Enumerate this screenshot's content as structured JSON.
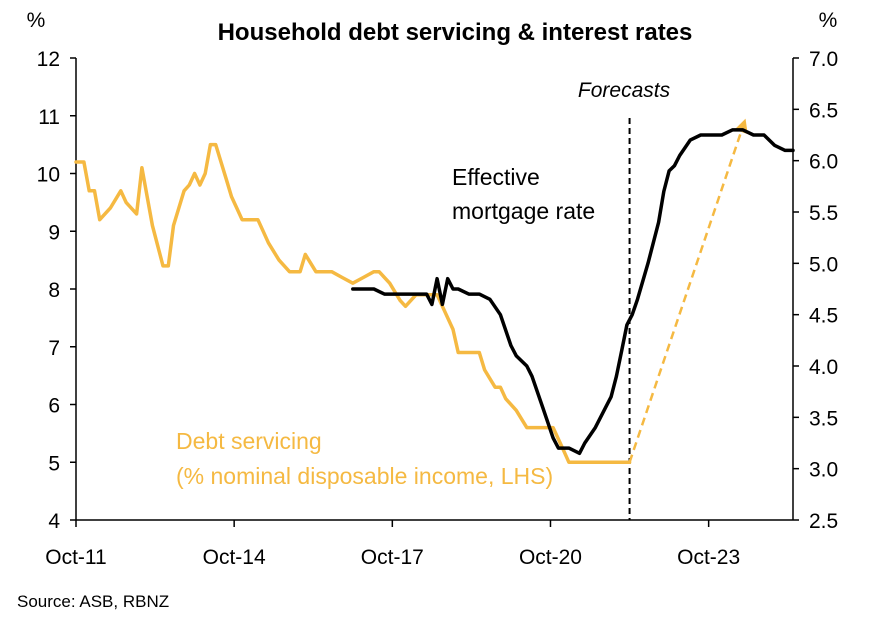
{
  "chart_data": {
    "type": "line",
    "title": "Household debt servicing & interest rates",
    "left_axis": {
      "unit": "%",
      "ylim": [
        4,
        12
      ],
      "ticks": [
        4,
        5,
        6,
        7,
        8,
        9,
        10,
        11,
        12
      ],
      "tick_labels": [
        "4",
        "5",
        "6",
        "7",
        "8",
        "9",
        "10",
        "11",
        "12"
      ]
    },
    "right_axis": {
      "unit": "%",
      "ylim": [
        2.5,
        7.0
      ],
      "ticks": [
        2.5,
        3.0,
        3.5,
        4.0,
        4.5,
        5.0,
        5.5,
        6.0,
        6.5,
        7.0
      ],
      "tick_labels": [
        "2.5",
        "3.0",
        "3.5",
        "4.0",
        "4.5",
        "5.0",
        "5.5",
        "6.0",
        "6.5",
        "7.0"
      ]
    },
    "x_axis": {
      "tick_labels": [
        "Oct-11",
        "Oct-14",
        "Oct-17",
        "Oct-20",
        "Oct-23"
      ],
      "tick_positions": [
        2011.75,
        2014.75,
        2017.75,
        2020.75,
        2023.75
      ],
      "xlim": [
        2011.75,
        2025.35
      ]
    },
    "forecast_label": "Forecasts",
    "forecast_start": 2022.25,
    "source": "Source: ASB, RBNZ",
    "series": [
      {
        "name": "Debt servicing",
        "label_lines": [
          "Debt servicing",
          "(% nominal disposable income, LHS)"
        ],
        "axis": "left",
        "color": "#F5B942",
        "x": [
          2011.75,
          2011.9,
          2012.0,
          2012.1,
          2012.2,
          2012.4,
          2012.6,
          2012.7,
          2012.9,
          2013.0,
          2013.2,
          2013.4,
          2013.5,
          2013.6,
          2013.8,
          2013.9,
          2014.0,
          2014.1,
          2014.2,
          2014.3,
          2014.4,
          2014.5,
          2014.6,
          2014.7,
          2014.8,
          2014.9,
          2015.0,
          2015.1,
          2015.2,
          2015.3,
          2015.4,
          2015.6,
          2015.8,
          2016.0,
          2016.1,
          2016.3,
          2016.4,
          2016.6,
          2016.8,
          2017.0,
          2017.2,
          2017.4,
          2017.5,
          2017.7,
          2017.9,
          2018.0,
          2018.2,
          2018.3,
          2018.5,
          2018.6,
          2018.7,
          2018.9,
          2019.0,
          2019.2,
          2019.4,
          2019.5,
          2019.7,
          2019.8,
          2019.9,
          2020.1,
          2020.3,
          2020.4,
          2020.6,
          2020.8,
          2020.9,
          2021.0,
          2021.1,
          2021.3,
          2021.5,
          2021.6,
          2021.8,
          2021.9,
          2022.0,
          2022.25
        ],
        "values": [
          10.2,
          10.2,
          9.7,
          9.7,
          9.2,
          9.4,
          9.7,
          9.5,
          9.3,
          10.1,
          9.1,
          8.4,
          8.4,
          9.1,
          9.7,
          9.8,
          10.0,
          9.8,
          10.0,
          10.5,
          10.5,
          10.2,
          9.9,
          9.6,
          9.4,
          9.2,
          9.2,
          9.2,
          9.2,
          9.0,
          8.8,
          8.5,
          8.3,
          8.3,
          8.6,
          8.3,
          8.3,
          8.3,
          8.2,
          8.1,
          8.2,
          8.3,
          8.3,
          8.1,
          7.8,
          7.7,
          7.9,
          7.9,
          7.9,
          7.9,
          7.7,
          7.3,
          6.9,
          6.9,
          6.9,
          6.6,
          6.3,
          6.3,
          6.1,
          5.9,
          5.6,
          5.6,
          5.6,
          5.6,
          5.4,
          5.2,
          5.0,
          5.0,
          5.0,
          5.0,
          5.0,
          5.0,
          5.0,
          5.0
        ]
      },
      {
        "name": "Effective mortgage rate",
        "label_lines": [
          "Effective",
          "mortgage rate"
        ],
        "axis": "right",
        "color": "#000000",
        "x": [
          2017.0,
          2017.2,
          2017.4,
          2017.6,
          2017.8,
          2018.0,
          2018.2,
          2018.4,
          2018.5,
          2018.6,
          2018.7,
          2018.8,
          2018.9,
          2019.0,
          2019.2,
          2019.4,
          2019.6,
          2019.8,
          2020.0,
          2020.1,
          2020.3,
          2020.4,
          2020.6,
          2020.8,
          2020.9,
          2021.0,
          2021.1,
          2021.3,
          2021.4,
          2021.6,
          2021.8,
          2021.9,
          2022.0,
          2022.1,
          2022.2,
          2022.3,
          2022.4,
          2022.6,
          2022.8,
          2022.9,
          2023.0,
          2023.1,
          2023.2,
          2023.4,
          2023.6,
          2023.8,
          2024.0,
          2024.2,
          2024.4,
          2024.6,
          2024.8,
          2025.0,
          2025.2,
          2025.35
        ],
        "values": [
          4.75,
          4.75,
          4.75,
          4.7,
          4.7,
          4.7,
          4.7,
          4.7,
          4.6,
          4.85,
          4.6,
          4.85,
          4.75,
          4.75,
          4.7,
          4.7,
          4.65,
          4.5,
          4.2,
          4.1,
          4.0,
          3.9,
          3.6,
          3.3,
          3.2,
          3.2,
          3.2,
          3.15,
          3.25,
          3.4,
          3.6,
          3.7,
          3.9,
          4.15,
          4.4,
          4.5,
          4.65,
          5.0,
          5.4,
          5.7,
          5.9,
          5.95,
          6.05,
          6.2,
          6.25,
          6.25,
          6.25,
          6.3,
          6.3,
          6.25,
          6.25,
          6.15,
          6.1,
          6.1
        ]
      }
    ],
    "annotation": {
      "type": "dashed-arrow",
      "color": "#F5B942",
      "from": {
        "x": 2022.25,
        "y_left": 5.0
      },
      "to": {
        "x": 2024.45,
        "y_left": 10.95
      }
    }
  }
}
